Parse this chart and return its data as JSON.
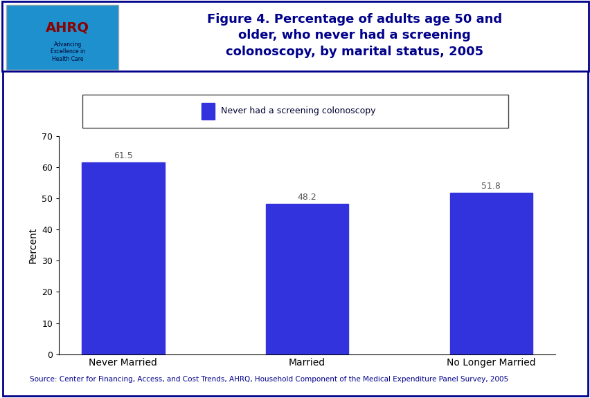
{
  "categories": [
    "Never Married",
    "Married",
    "No Longer Married"
  ],
  "values": [
    61.5,
    48.2,
    51.8
  ],
  "bar_color": "#3333DD",
  "title_line1": "Figure 4. Percentage of adults age 50 and",
  "title_line2": "older, who never had a screening",
  "title_line3": "colonoscopy, by marital status, 2005",
  "title_color": "#00008B",
  "ylabel": "Percent",
  "ylabel_color": "#000000",
  "ylim": [
    0,
    70
  ],
  "yticks": [
    0,
    10,
    20,
    30,
    40,
    50,
    60,
    70
  ],
  "legend_label": "Never had a screening colonoscopy",
  "legend_color": "#3333DD",
  "source_text": "Source: Center for Financing, Access, and Cost Trends, AHRQ, Household Component of the Medical Expenditure Panel Survey, 2005",
  "source_color": "#00008B",
  "header_bg_color": "#FFFFFF",
  "header_border_color": "#00008B",
  "divider_color": "#00008B",
  "bg_color": "#FFFFFF",
  "bar_label_color": "#555555",
  "bar_width": 0.45,
  "figwidth": 8.53,
  "figheight": 5.76,
  "dpi": 100
}
